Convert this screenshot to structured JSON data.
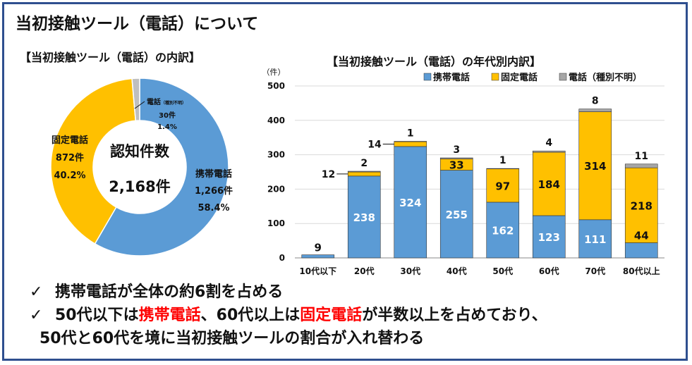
{
  "header": {
    "title": "当初接触ツール（電話）について"
  },
  "pie": {
    "title": "【当初接触ツール（電話）の内訳】",
    "center_line1": "認知件数",
    "center_line2": "2,168件",
    "colors": [
      "#5b9bd5",
      "#ffc000",
      "#bfbfbf"
    ],
    "labels": {
      "mobile": {
        "name": "携帯電話",
        "count": "1,266件",
        "pct": "58.4%"
      },
      "landline": {
        "name": "固定電話",
        "count": "872件",
        "pct": "40.2%"
      },
      "unknown": {
        "name": "電話",
        "sub": "（種別不明）",
        "count": "30件",
        "pct": "1.4%"
      }
    }
  },
  "bar": {
    "title": "【当初接触ツール（電話）の年代別内訳】",
    "unit": "（件）",
    "legend": [
      "携帯電話",
      "固定電話",
      "電話（種別不明）"
    ]
  },
  "chart_data": [
    {
      "type": "pie",
      "categories": [
        "携帯電話",
        "固定電話",
        "電話（種別不明）"
      ],
      "values": [
        1266,
        872,
        30
      ],
      "percentages": [
        58.4,
        40.2,
        1.4
      ],
      "total": 2168
    },
    {
      "type": "bar",
      "stacked": true,
      "categories": [
        "10代以下",
        "20代",
        "30代",
        "40代",
        "50代",
        "60代",
        "70代",
        "80代以上"
      ],
      "series": [
        {
          "name": "携帯電話",
          "color": "#5b9bd5",
          "values": [
            9,
            238,
            324,
            255,
            162,
            123,
            111,
            44
          ]
        },
        {
          "name": "固定電話",
          "color": "#ffc000",
          "values": [
            0,
            12,
            14,
            33,
            97,
            184,
            314,
            218
          ]
        },
        {
          "name": "電話（種別不明）",
          "color": "#a6a6a6",
          "values": [
            0,
            2,
            1,
            3,
            1,
            4,
            8,
            11
          ]
        }
      ],
      "ylim": [
        0,
        500
      ],
      "yticks": [
        0,
        100,
        200,
        300,
        400,
        500
      ],
      "ylabel": "（件）",
      "legend_position": "top-right",
      "grid": true
    }
  ],
  "bullets": {
    "check": "✓",
    "line1": "携帯電話が全体の約6割を占める",
    "line2_a": "50代以下は",
    "line2_red1": "携帯電話",
    "line2_b": "、60代以上は",
    "line2_red2": "固定電話",
    "line2_c": "が半数以上を占めており、",
    "line3": "50代と60代を境に当初接触ツールの割合が入れ替わる"
  }
}
